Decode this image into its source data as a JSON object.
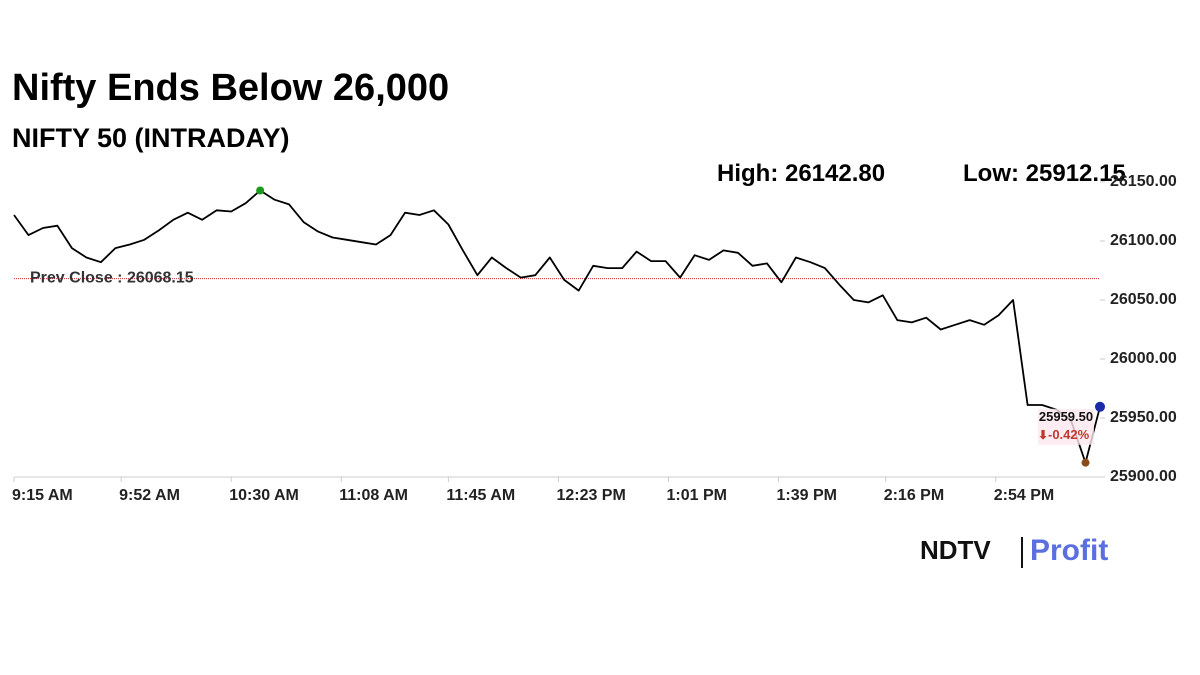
{
  "chart_data": {
    "type": "line",
    "title": "Nifty Ends Below 26,000",
    "subtitle": "NIFTY 50 (INTRADAY)",
    "high": {
      "label": "High:",
      "value": 26142.8,
      "value_label": "26142.80"
    },
    "low": {
      "label": "Low:",
      "value": 25912.15,
      "value_label": "25912.15"
    },
    "prev_close": {
      "label": "Prev Close :",
      "value": 26068.15,
      "value_label": "26068.15"
    },
    "last": {
      "value": 25959.5,
      "value_label": "25959.50",
      "change": -0.42,
      "change_label": "-0.42%"
    },
    "x": [
      "9:15 AM",
      "9:20 AM",
      "9:25 AM",
      "9:30 AM",
      "9:35 AM",
      "9:40 AM",
      "9:45 AM",
      "9:50 AM",
      "9:55 AM",
      "10:00 AM",
      "10:05 AM",
      "10:10 AM",
      "10:15 AM",
      "10:20 AM",
      "10:25 AM",
      "10:30 AM",
      "10:35 AM",
      "10:40 AM",
      "10:45 AM",
      "10:50 AM",
      "10:55 AM",
      "11:00 AM",
      "11:05 AM",
      "11:10 AM",
      "11:15 AM",
      "11:20 AM",
      "11:25 AM",
      "11:30 AM",
      "11:35 AM",
      "11:40 AM",
      "11:45 AM",
      "11:50 AM",
      "11:55 AM",
      "12:00 PM",
      "12:05 PM",
      "12:10 PM",
      "12:15 PM",
      "12:20 PM",
      "12:25 PM",
      "12:30 PM",
      "12:35 PM",
      "12:40 PM",
      "12:45 PM",
      "12:50 PM",
      "12:55 PM",
      "1:00 PM",
      "1:05 PM",
      "1:10 PM",
      "1:15 PM",
      "1:20 PM",
      "1:25 PM",
      "1:30 PM",
      "1:35 PM",
      "1:40 PM",
      "1:45 PM",
      "1:50 PM",
      "1:55 PM",
      "2:00 PM",
      "2:05 PM",
      "2:10 PM",
      "2:15 PM",
      "2:20 PM",
      "2:25 PM",
      "2:30 PM",
      "2:35 PM",
      "2:40 PM",
      "2:45 PM",
      "2:50 PM",
      "2:55 PM",
      "3:00 PM",
      "3:05 PM",
      "3:10 PM",
      "3:15 PM",
      "3:20 PM",
      "3:25 PM",
      "3:30 PM"
    ],
    "series": [
      {
        "name": "NIFTY 50",
        "color": "#000000",
        "values": [
          26122,
          26105,
          26111,
          26113,
          26094,
          26086,
          26082,
          26094,
          26097,
          26101,
          26109,
          26118,
          26124,
          26118,
          26126,
          26125,
          26132,
          26142.8,
          26135,
          26131,
          26116,
          26108,
          26103,
          26101,
          26099,
          26097,
          26105,
          26124,
          26122,
          26126,
          26114,
          26092,
          26071,
          26086,
          26077,
          26069,
          26071,
          26086,
          26067,
          26058,
          26079,
          26077,
          26077,
          26091,
          26083,
          26083,
          26069,
          26088,
          26084,
          26092,
          26090,
          26079,
          26081,
          26065,
          26086,
          26082,
          26077,
          26063,
          26050,
          26048,
          26054,
          26033,
          26031,
          26035,
          26025,
          26029,
          26033,
          26029,
          26037,
          26050,
          25961,
          25961,
          25957,
          25948,
          25912.15,
          25959.5
        ]
      }
    ],
    "xlim": [
      "9:15 AM",
      "3:30 PM"
    ],
    "xticks": [
      "9:15 AM",
      "9:52 AM",
      "10:30 AM",
      "11:08 AM",
      "11:45 AM",
      "12:23 PM",
      "1:01 PM",
      "1:39 PM",
      "2:16 PM",
      "2:54 PM"
    ],
    "ylim": [
      25900,
      26150
    ],
    "yticks": [
      {
        "value": 25900,
        "label": "25900.00"
      },
      {
        "value": 25950,
        "label": "25950.00"
      },
      {
        "value": 26000,
        "label": "26000.00"
      },
      {
        "value": 26050,
        "label": "26050.00"
      },
      {
        "value": 26100,
        "label": "26100.00"
      },
      {
        "value": 26150,
        "label": "26150.00"
      }
    ],
    "source": {
      "brand": "NDTV",
      "product": "Profit"
    }
  }
}
